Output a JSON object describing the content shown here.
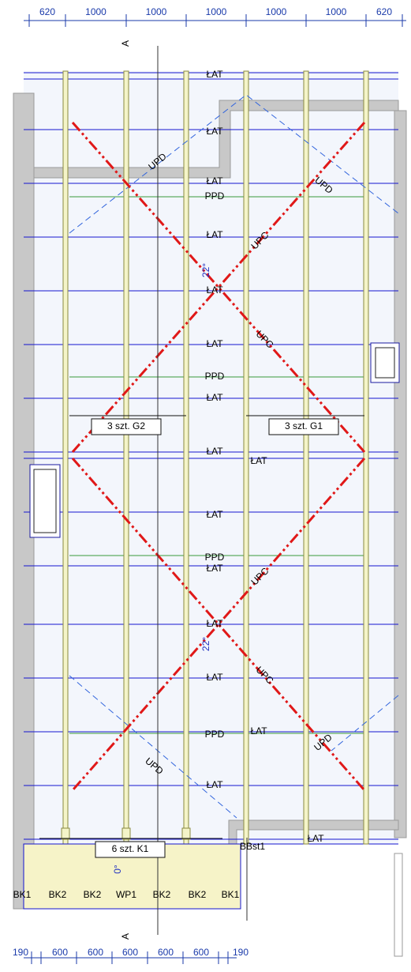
{
  "dimensions_top": [
    "620",
    "1000",
    "1000",
    "1000",
    "1000",
    "1000",
    "620"
  ],
  "dimensions_bottom": [
    "190",
    "600",
    "600",
    "600",
    "600",
    "600",
    "190"
  ],
  "section_marks": [
    "A",
    "A"
  ],
  "battens": [
    "ŁAT",
    "ŁAT",
    "ŁAT",
    "ŁAT",
    "ŁAT",
    "ŁAT",
    "ŁAT",
    "ŁAT",
    "ŁAT",
    "ŁAT",
    "ŁAT",
    "ŁAT",
    "ŁAT",
    "ŁAT",
    "ŁAT",
    "ŁAT"
  ],
  "membranes": [
    "PPD",
    "PPD",
    "PPD",
    "PPD"
  ],
  "underlays": [
    "UPD",
    "UPD",
    "UPD",
    "UPD"
  ],
  "counter_battens": [
    "UPC",
    "UPC",
    "UPC",
    "UPC"
  ],
  "slopes": [
    "22°",
    "22°",
    "0°"
  ],
  "groups": [
    "3 szt. G2",
    "3 szt. G1",
    "6 szt. K1"
  ],
  "bbst": "BBst1",
  "bk_labels": [
    "BK1",
    "BK2",
    "BK2",
    "WP1",
    "BK2",
    "BK2",
    "BK1"
  ]
}
